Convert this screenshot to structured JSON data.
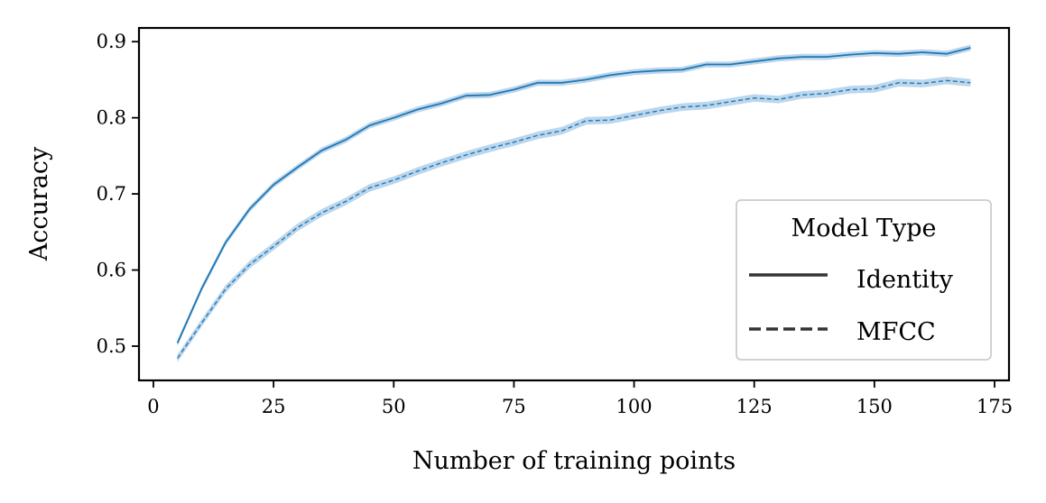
{
  "chart_data": {
    "type": "line",
    "xlabel": "Number of training points",
    "ylabel": "Accuracy",
    "xlim": [
      -3,
      178
    ],
    "ylim": [
      0.455,
      0.918
    ],
    "xticks": [
      0,
      25,
      50,
      75,
      100,
      125,
      150,
      175
    ],
    "yticks": [
      0.5,
      0.6,
      0.7,
      0.8,
      0.9
    ],
    "xtick_labels": [
      "0",
      "25",
      "50",
      "75",
      "100",
      "125",
      "150",
      "175"
    ],
    "ytick_labels": [
      "0.5",
      "0.6",
      "0.7",
      "0.8",
      "0.9"
    ],
    "legend": {
      "title": "Model Type",
      "position": "lower-right"
    },
    "series_color": "#1f77b4",
    "band_color": "#a6c8e6",
    "x": [
      5,
      10,
      15,
      20,
      25,
      30,
      35,
      40,
      45,
      50,
      55,
      60,
      65,
      70,
      75,
      80,
      85,
      90,
      95,
      100,
      105,
      110,
      115,
      120,
      125,
      130,
      135,
      140,
      145,
      150,
      155,
      160,
      165,
      170
    ],
    "series": [
      {
        "name": "Identity",
        "style": "solid",
        "values": [
          0.504,
          0.575,
          0.636,
          0.68,
          0.712,
          0.735,
          0.757,
          0.771,
          0.79,
          0.8,
          0.811,
          0.819,
          0.829,
          0.83,
          0.837,
          0.846,
          0.846,
          0.85,
          0.856,
          0.86,
          0.862,
          0.863,
          0.87,
          0.87,
          0.874,
          0.878,
          0.88,
          0.88,
          0.883,
          0.885,
          0.884,
          0.886,
          0.884,
          0.892
        ],
        "band": 0.004
      },
      {
        "name": "MFCC",
        "style": "dashed",
        "values": [
          0.484,
          0.53,
          0.575,
          0.607,
          0.631,
          0.656,
          0.675,
          0.69,
          0.708,
          0.718,
          0.73,
          0.741,
          0.751,
          0.76,
          0.768,
          0.777,
          0.783,
          0.796,
          0.797,
          0.803,
          0.809,
          0.814,
          0.816,
          0.821,
          0.826,
          0.824,
          0.83,
          0.832,
          0.837,
          0.838,
          0.846,
          0.845,
          0.849,
          0.846
        ],
        "band": 0.005
      }
    ]
  }
}
